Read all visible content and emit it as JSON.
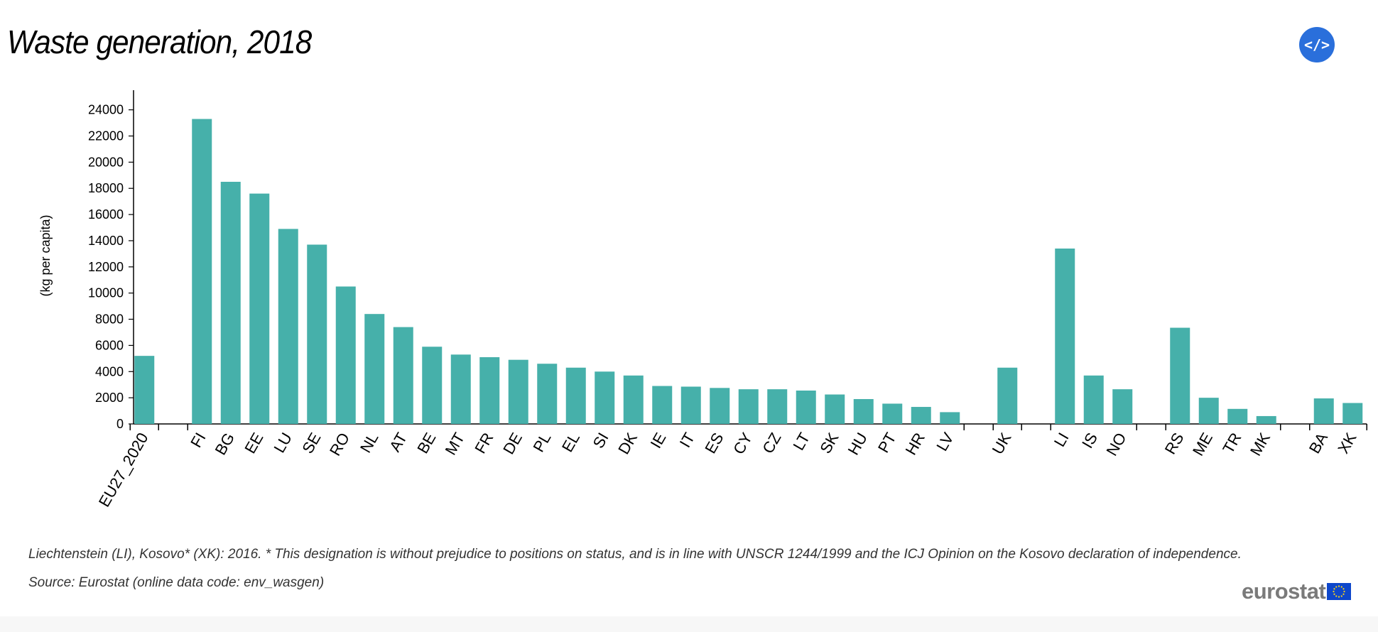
{
  "header": {
    "title": "Waste generation, 2018",
    "embed_label": "</>"
  },
  "footer": {
    "note": "Liechtenstein (LI), Kosovo* (XK): 2016. * This designation is without prejudice to positions on status, and is in line with UNSCR 1244/1999 and the ICJ Opinion on the Kosovo declaration of independence.",
    "source": "Source: Eurostat (online data code: env_wasgen)",
    "logo_text": "eurostat"
  },
  "colors": {
    "bar": "#46b0aa",
    "axis": "#000000",
    "logo_flag": "#0e47cb",
    "logo_stars": "#ffd617"
  },
  "chart_data": {
    "type": "bar",
    "title": "Waste generation, 2018",
    "xlabel": "",
    "ylabel": "(kg per capita)",
    "ylim": [
      0,
      25500
    ],
    "yticks": [
      0,
      2000,
      4000,
      6000,
      8000,
      10000,
      12000,
      14000,
      16000,
      18000,
      20000,
      22000,
      24000
    ],
    "grid": false,
    "groups": [
      {
        "categories": [
          "EU27_2020"
        ],
        "values": [
          5200
        ]
      },
      {
        "categories": [
          "FI",
          "BG",
          "EE",
          "LU",
          "SE",
          "RO",
          "NL",
          "AT",
          "BE",
          "MT",
          "FR",
          "DE",
          "PL",
          "EL",
          "SI",
          "DK",
          "IE",
          "IT",
          "ES",
          "CY",
          "CZ",
          "LT",
          "SK",
          "HU",
          "PT",
          "HR",
          "LV"
        ],
        "values": [
          23300,
          18500,
          17600,
          14900,
          13700,
          10500,
          8400,
          7400,
          5900,
          5300,
          5100,
          4900,
          4600,
          4300,
          4000,
          3700,
          2900,
          2850,
          2750,
          2650,
          2650,
          2550,
          2250,
          1900,
          1550,
          1300,
          900
        ]
      },
      {
        "categories": [
          "UK"
        ],
        "values": [
          4300
        ]
      },
      {
        "categories": [
          "LI",
          "IS",
          "NO"
        ],
        "values": [
          13400,
          3700,
          2650
        ]
      },
      {
        "categories": [
          "RS",
          "ME",
          "TR",
          "MK"
        ],
        "values": [
          7350,
          2000,
          1150,
          600
        ]
      },
      {
        "categories": [
          "BA",
          "XK"
        ],
        "values": [
          1950,
          1600
        ]
      }
    ]
  }
}
